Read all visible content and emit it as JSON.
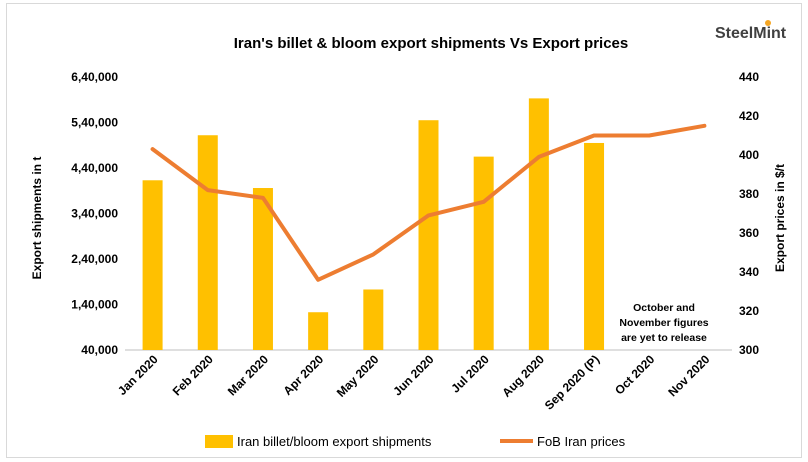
{
  "chart_data": {
    "type": "bar",
    "title": "Iran's billet & bloom export shipments Vs Export prices",
    "brand": "SteelMint",
    "categories": [
      "Jan 2020",
      "Feb 2020",
      "Mar 2020",
      "Apr 2020",
      "May 2020",
      "Jun 2020",
      "Jul 2020",
      "Aug 2020",
      "Sep 2020 (P)",
      "Oct 2020",
      "Nov 2020"
    ],
    "ylabel": "Export shipments in t",
    "y2label": "Export prices in $/t",
    "ylim": [
      40000,
      640000
    ],
    "y_ticks": [
      "6,40,000",
      "5,40,000",
      "4,40,000",
      "3,40,000",
      "2,40,000",
      "1,40,000",
      "40,000"
    ],
    "y_tick_values": [
      640000,
      540000,
      440000,
      340000,
      240000,
      140000,
      40000
    ],
    "y2lim": [
      300,
      440
    ],
    "y2_ticks": [
      "440",
      "420",
      "400",
      "380",
      "360",
      "340",
      "320",
      "300"
    ],
    "y2_tick_values": [
      440,
      420,
      400,
      380,
      360,
      340,
      320,
      300
    ],
    "series": [
      {
        "name": "Iran billet/bloom export shipments",
        "kind": "bar",
        "axis": "left",
        "color": "#FFC000",
        "values": [
          413000,
          512000,
          396000,
          123000,
          173000,
          545000,
          465000,
          593000,
          495000,
          null,
          null
        ]
      },
      {
        "name": "FoB Iran prices",
        "kind": "line",
        "axis": "right",
        "color": "#ED7D31",
        "values": [
          403,
          382,
          378,
          336,
          349,
          369,
          376,
          399,
          410,
          410,
          415
        ]
      }
    ],
    "annotation": [
      "October and",
      "November figures",
      "are yet to release"
    ],
    "grid": false,
    "legend_position": "bottom"
  }
}
